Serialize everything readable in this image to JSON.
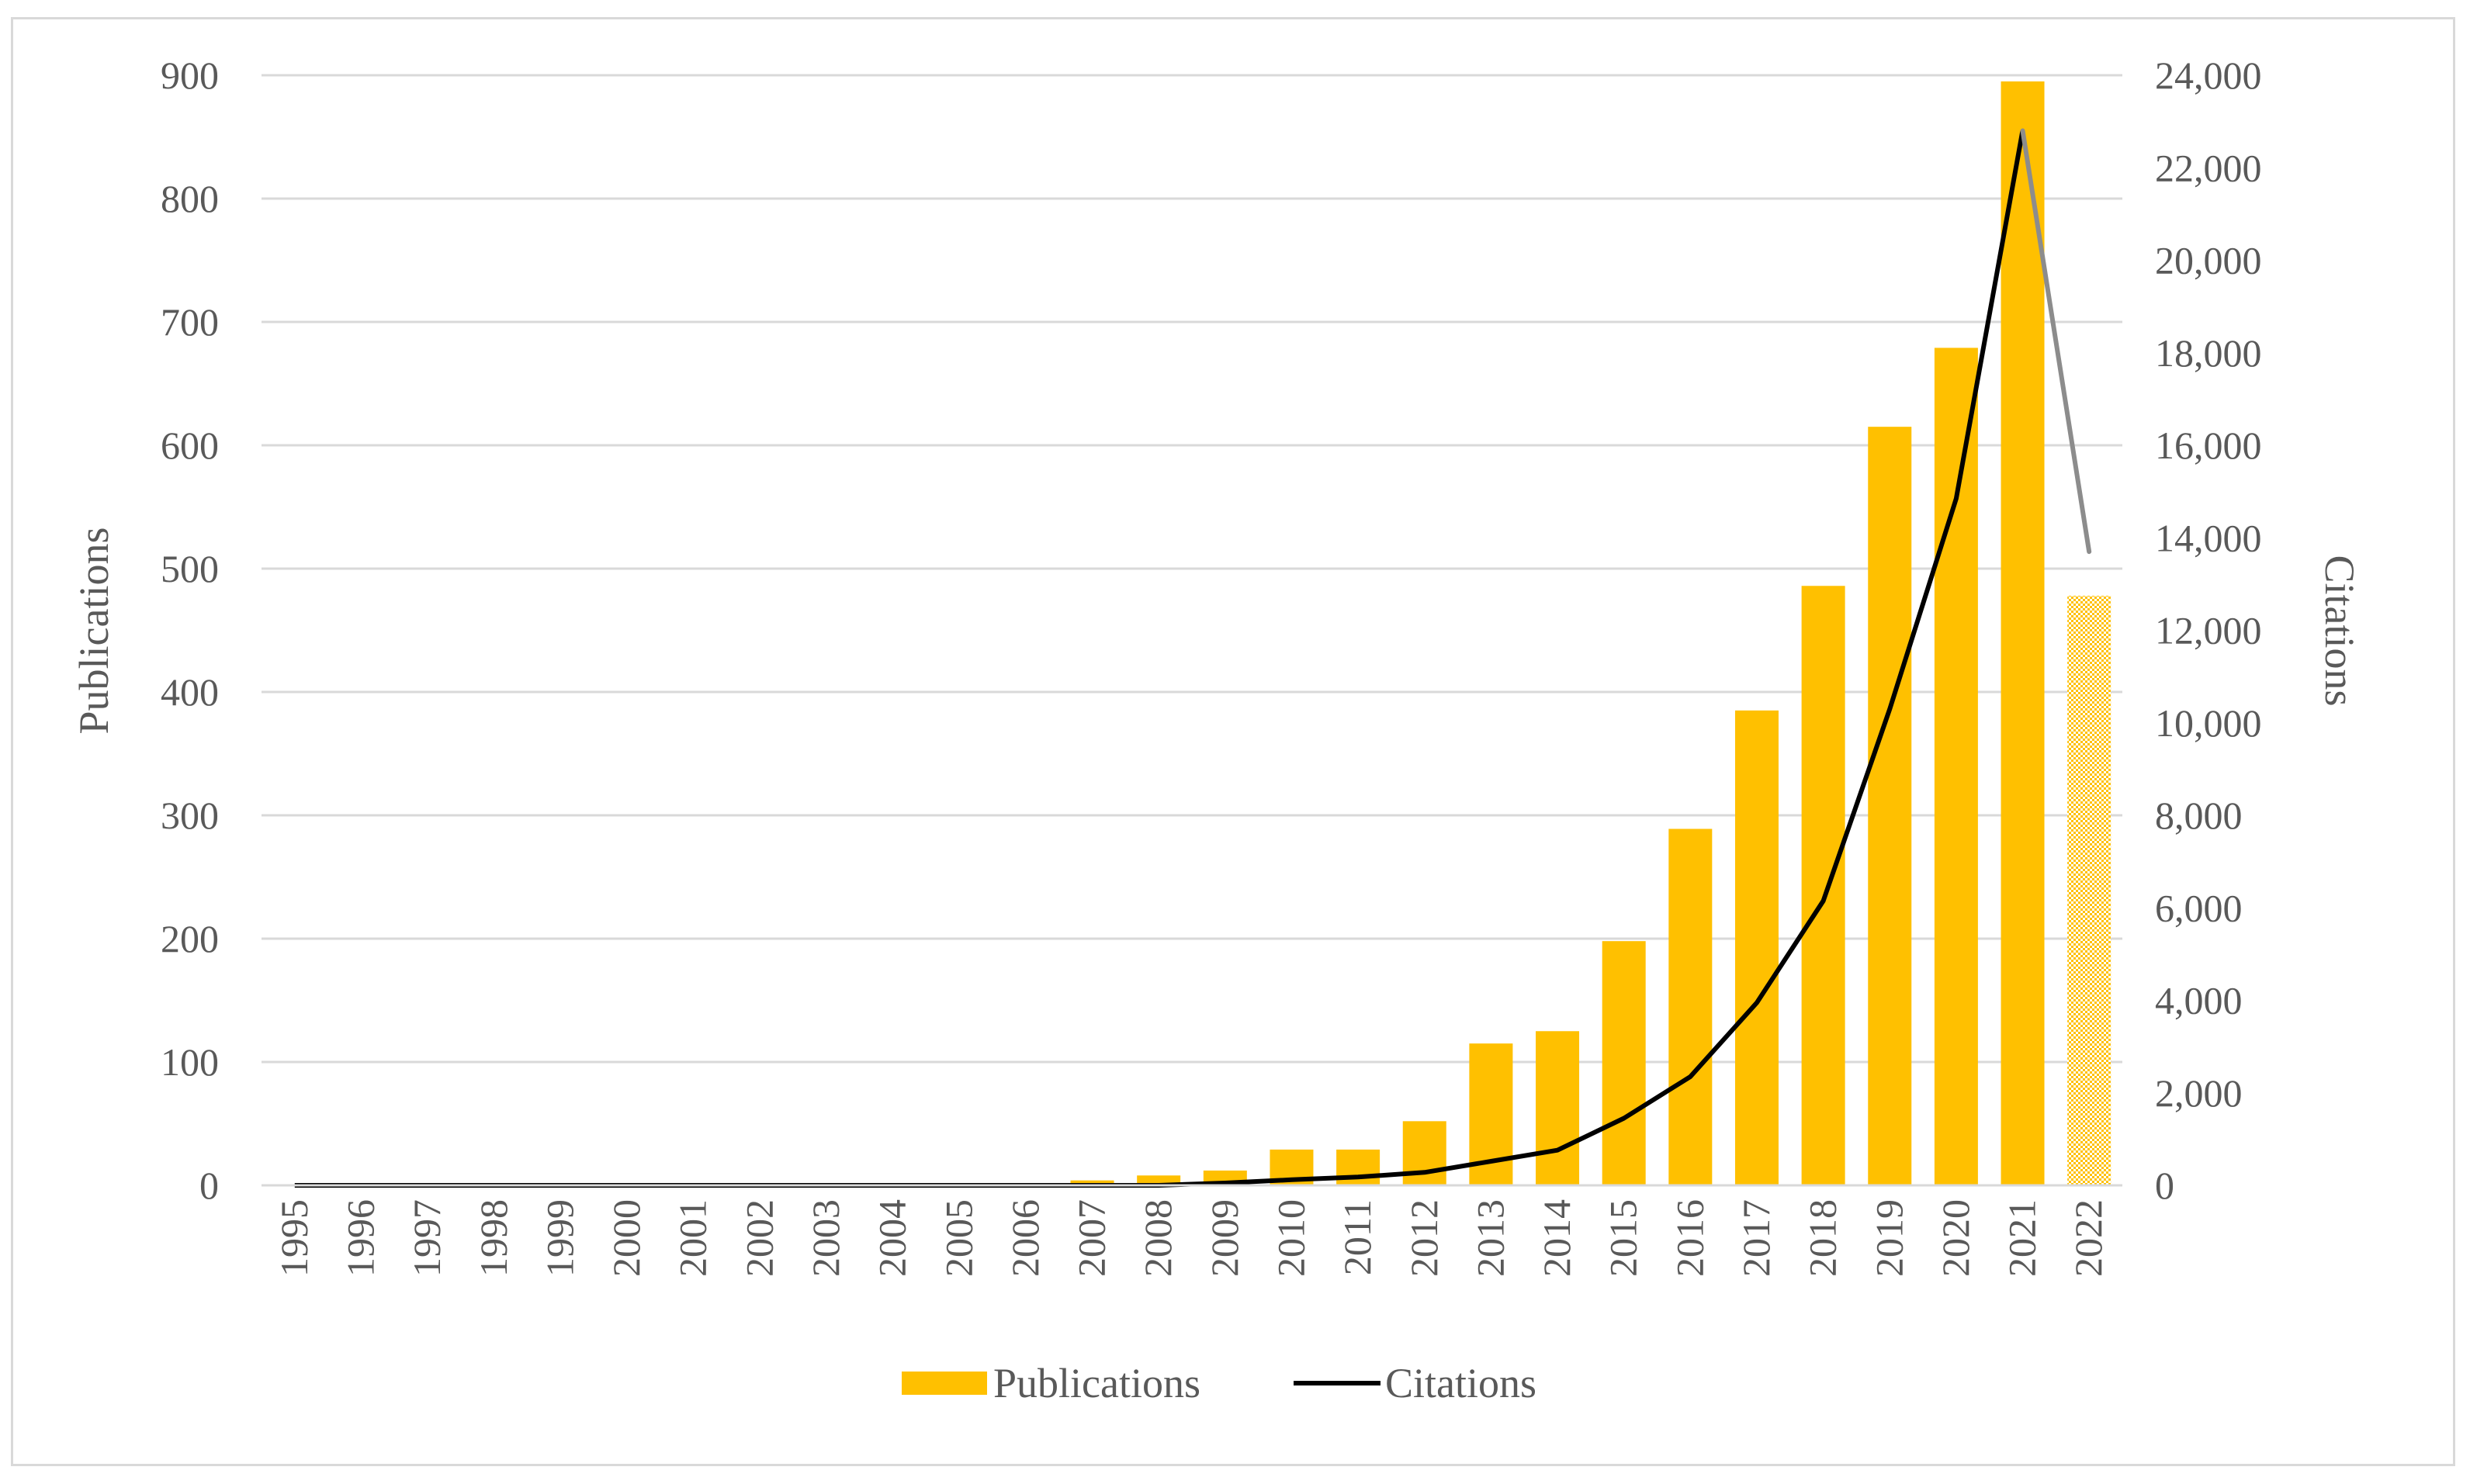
{
  "chart_data": {
    "type": "bar",
    "title": "",
    "categories": [
      "1995",
      "1996",
      "1997",
      "1998",
      "1999",
      "2000",
      "2001",
      "2002",
      "2003",
      "2004",
      "2005",
      "2006",
      "2007",
      "2008",
      "2009",
      "2010",
      "2011",
      "2012",
      "2013",
      "2014",
      "2015",
      "2016",
      "2017",
      "2018",
      "2019",
      "2020",
      "2021",
      "2022"
    ],
    "series": [
      {
        "name": "Publications",
        "type": "bar",
        "axis": "left",
        "color": "#FFC000",
        "values": [
          0,
          0,
          0,
          0,
          0,
          0,
          0,
          0,
          0,
          0,
          0,
          0,
          4,
          8,
          12,
          29,
          29,
          52,
          115,
          125,
          198,
          289,
          385,
          486,
          615,
          679,
          895,
          478
        ],
        "partial_last": true
      },
      {
        "name": "Citations",
        "type": "line",
        "axis": "right",
        "color": "#000000",
        "values": [
          0,
          0,
          0,
          0,
          0,
          0,
          0,
          0,
          0,
          0,
          0,
          0,
          0,
          0,
          50,
          120,
          180,
          280,
          520,
          760,
          1450,
          2350,
          3950,
          6150,
          10300,
          14850,
          22800,
          13700
        ],
        "partial_last": true
      }
    ],
    "y_left": {
      "label": "Publications",
      "min": 0,
      "max": 900,
      "ticks": [
        "0",
        "100",
        "200",
        "300",
        "400",
        "500",
        "600",
        "700",
        "800",
        "900"
      ]
    },
    "y_right": {
      "label": "Citations",
      "min": 0,
      "max": 24000,
      "ticks": [
        "0",
        "2,000",
        "4,000",
        "6,000",
        "8,000",
        "10,000",
        "12,000",
        "14,000",
        "16,000",
        "18,000",
        "20,000",
        "22,000",
        "24,000"
      ]
    },
    "grid": true,
    "legend": {
      "position": "bottom",
      "entries": [
        "Publications",
        "Citations"
      ]
    }
  }
}
